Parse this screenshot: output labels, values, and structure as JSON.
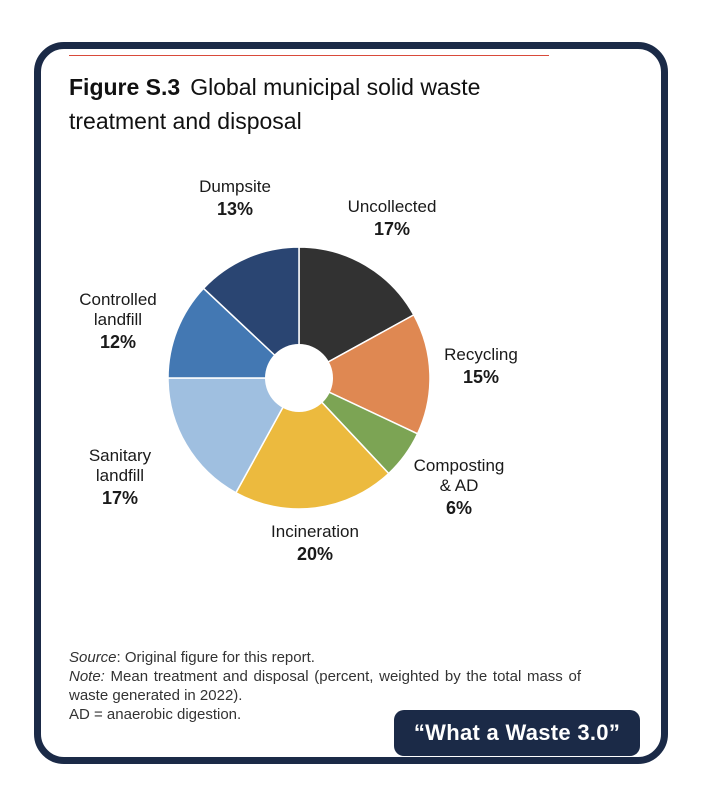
{
  "figure": {
    "number": "Figure S.3",
    "title_line1": "Global municipal solid waste",
    "title_line2": "treatment and disposal"
  },
  "chart_data": {
    "type": "pie",
    "variant": "donut",
    "slices": [
      {
        "name_lines": [
          "Uncollected"
        ],
        "label": "Uncollected",
        "value": 17,
        "value_label": "17%",
        "color": "#323232"
      },
      {
        "name_lines": [
          "Recycling"
        ],
        "label": "Recycling",
        "value": 15,
        "value_label": "15%",
        "color": "#df8852"
      },
      {
        "name_lines": [
          "Composting",
          "& AD"
        ],
        "label": "Composting & AD",
        "value": 6,
        "value_label": "6%",
        "color": "#7ca454"
      },
      {
        "name_lines": [
          "Incineration"
        ],
        "label": "Incineration",
        "value": 20,
        "value_label": "20%",
        "color": "#ecba3e"
      },
      {
        "name_lines": [
          "Sanitary",
          "landfill"
        ],
        "label": "Sanitary landfill",
        "value": 17,
        "value_label": "17%",
        "color": "#9fbfe0"
      },
      {
        "name_lines": [
          "Controlled",
          "landfill"
        ],
        "label": "Controlled landfill",
        "value": 12,
        "value_label": "12%",
        "color": "#4378b3"
      },
      {
        "name_lines": [
          "Dumpsite"
        ],
        "label": "Dumpsite",
        "value": 13,
        "value_label": "13%",
        "color": "#2a4572"
      }
    ]
  },
  "notes": {
    "source_label": "Source",
    "source_text": ": Original figure for this report.",
    "note_label": "Note:",
    "note_text": " Mean treatment and disposal (percent, weighted by the total mass of waste generated in 2022).",
    "ad_text": "AD = anaerobic digestion."
  },
  "badge": {
    "text": "“What a Waste 3.0”"
  },
  "colors": {
    "frame": "#1b2a47",
    "rule": "#d94a3a"
  }
}
